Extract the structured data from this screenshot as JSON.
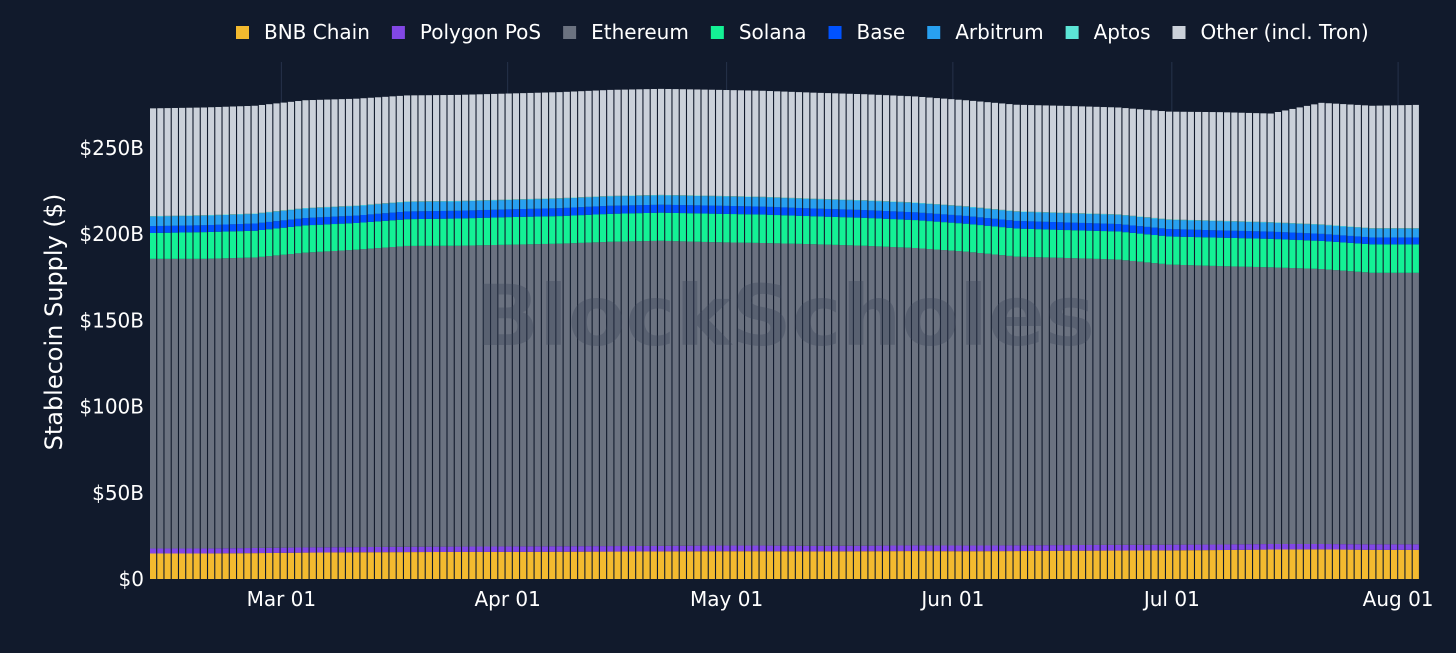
{
  "colors": {
    "background": "#111a2c",
    "text": "#ffffff",
    "gridline": "#26324a",
    "watermark": "#3a4358"
  },
  "watermark_text": "BlockScholes",
  "chart_data": {
    "type": "bar",
    "stacked": true,
    "ylabel": "Stablecoin Supply ($)",
    "xlabel": "",
    "ylim": [
      0,
      275
    ],
    "y_unit": "billion USD",
    "y_ticks": [
      {
        "value": 0,
        "label": "$0"
      },
      {
        "value": 50,
        "label": "$50B"
      },
      {
        "value": 100,
        "label": "$100B"
      },
      {
        "value": 150,
        "label": "$150B"
      },
      {
        "value": 200,
        "label": "$200B"
      },
      {
        "value": 250,
        "label": "$250B"
      }
    ],
    "x_range": [
      "2024-02-12",
      "2024-08-04"
    ],
    "x_ticks": [
      {
        "date": "2024-03-01",
        "label": "Mar 01"
      },
      {
        "date": "2024-04-01",
        "label": "Apr 01"
      },
      {
        "date": "2024-05-01",
        "label": "May 01"
      },
      {
        "date": "2024-06-01",
        "label": "Jun 01"
      },
      {
        "date": "2024-07-01",
        "label": "Jul 01"
      },
      {
        "date": "2024-08-01",
        "label": "Aug 01"
      }
    ],
    "legend_position": "top",
    "grid": {
      "x": true,
      "y": false
    },
    "x": [
      "2024-02-12",
      "2024-02-19",
      "2024-02-26",
      "2024-03-04",
      "2024-03-11",
      "2024-03-18",
      "2024-03-25",
      "2024-04-01",
      "2024-04-08",
      "2024-04-15",
      "2024-04-22",
      "2024-04-29",
      "2024-05-06",
      "2024-05-13",
      "2024-05-20",
      "2024-05-27",
      "2024-06-03",
      "2024-06-10",
      "2024-06-17",
      "2024-06-24",
      "2024-07-01",
      "2024-07-08",
      "2024-07-15",
      "2024-07-22",
      "2024-07-29",
      "2024-08-04"
    ],
    "series": [
      {
        "name": "BNB Chain",
        "color": "#f3ba2f",
        "values": [
          14.8,
          14.8,
          15,
          15.3,
          15.5,
          15.6,
          15.7,
          15.7,
          15.8,
          15.9,
          16,
          16.1,
          16.1,
          16,
          16.1,
          16.2,
          16.1,
          16.2,
          16.4,
          16.5,
          16.6,
          16.8,
          17.1,
          17.2,
          16.9,
          16.9
        ]
      },
      {
        "name": "Polygon PoS",
        "color": "#8247e5",
        "values": [
          2.9,
          2.9,
          3,
          3,
          3,
          3.1,
          3.1,
          3.2,
          3.2,
          3.2,
          3.2,
          3.3,
          3.3,
          3.2,
          3.2,
          3.3,
          3.3,
          3.3,
          3.3,
          3.3,
          3.3,
          3.2,
          3.2,
          3.1,
          3.2,
          3.2
        ]
      },
      {
        "name": "Ethereum",
        "color": "#6b7280",
        "values": [
          168,
          168,
          168.5,
          171,
          172.5,
          174.5,
          174.5,
          175,
          175.5,
          176.5,
          177,
          176,
          175.5,
          175,
          174,
          172.5,
          170.5,
          167.5,
          166.5,
          165.5,
          162.5,
          161.5,
          160.5,
          159.5,
          157.5,
          157.5
        ]
      },
      {
        "name": "Solana",
        "color": "#14f195",
        "values": [
          15,
          15.5,
          15.5,
          15.8,
          15.5,
          15.5,
          15.8,
          16,
          16,
          16.2,
          16.3,
          16.5,
          16.5,
          16.2,
          16.2,
          16.2,
          16.2,
          16.3,
          16.2,
          16.3,
          16.3,
          16.5,
          16.5,
          16.3,
          16.5,
          16.5
        ]
      },
      {
        "name": "Base",
        "color": "#0052ff",
        "values": [
          4,
          4,
          4.2,
          4.3,
          4.3,
          4.5,
          4.5,
          4.5,
          4.6,
          4.7,
          4.6,
          4.7,
          4.6,
          4.5,
          4.5,
          4.5,
          4.5,
          4.4,
          4.4,
          4.3,
          4.3,
          4.2,
          4.2,
          4.1,
          4,
          4
        ]
      },
      {
        "name": "Arbitrum",
        "color": "#28a0f0",
        "values": [
          5.5,
          5.5,
          5.5,
          5.5,
          5.5,
          5.5,
          5.4,
          5.4,
          5.5,
          5.4,
          5.4,
          5.4,
          5.4,
          5.4,
          5.4,
          5.4,
          5.3,
          5.3,
          5.3,
          5.3,
          5.3,
          5.3,
          5.2,
          5.2,
          5.1,
          5.1
        ]
      },
      {
        "name": "Aptos",
        "color": "#5ce5d6",
        "values": [
          0.3,
          0.3,
          0.3,
          0.3,
          0.3,
          0.3,
          0.3,
          0.3,
          0.3,
          0.3,
          0.3,
          0.3,
          0.3,
          0.3,
          0.3,
          0.3,
          0.3,
          0.3,
          0.3,
          0.3,
          0.3,
          0.3,
          0.3,
          0.3,
          0.3,
          0.3
        ]
      },
      {
        "name": "Other (incl. Tron)",
        "color": "#cbd1da",
        "values": [
          62.5,
          62.5,
          62.5,
          62.5,
          62,
          61.5,
          61.5,
          61.5,
          61.5,
          61.5,
          61.5,
          61.5,
          61.5,
          61.5,
          61.5,
          61.5,
          61.5,
          61.8,
          62,
          62,
          62.5,
          63,
          63,
          70.5,
          71,
          71.5
        ]
      }
    ]
  }
}
